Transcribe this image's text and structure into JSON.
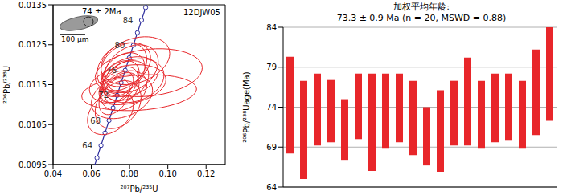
{
  "chart_data": [
    {
      "type": "scatter",
      "title": "12DJW05",
      "annotations": [
        "74 ± 2Ma",
        "100 μm"
      ],
      "x_label": "²⁰⁷Pb/²³⁵U",
      "y_label": "²⁰⁶Pb/²³⁸U",
      "xlim": [
        0.04,
        0.13
      ],
      "ylim": [
        0.0095,
        0.0135
      ],
      "xticks": [
        0.04,
        0.06,
        0.08,
        {
          "value": 0.1,
          "label": "0.10"
        },
        0.12
      ],
      "yticks": [
        0.0095,
        0.0105,
        0.0115,
        0.0125,
        0.0135
      ],
      "color": "#e8262a",
      "ellipses": {
        "x": [
          0.0745,
          0.078,
          0.076,
          0.08,
          0.072,
          0.077,
          0.085,
          0.079,
          0.074,
          0.081,
          0.07,
          0.076,
          0.083,
          0.075,
          0.078,
          0.073,
          0.09,
          0.077,
          0.082,
          0.076
        ],
        "y": [
          0.0115,
          0.0116,
          0.0114,
          0.0117,
          0.0112,
          0.0118,
          0.0113,
          0.0115,
          0.011,
          0.0119,
          0.0108,
          0.0112,
          0.0121,
          0.01165,
          0.012,
          0.01145,
          0.0118,
          0.01135,
          0.0116,
          0.01195
        ],
        "x_err": [
          0.01,
          0.012,
          0.009,
          0.015,
          0.008,
          0.011,
          0.03,
          0.02,
          0.012,
          0.014,
          0.012,
          0.016,
          0.018,
          0.01,
          0.013,
          0.009,
          0.028,
          0.012,
          0.016,
          0.013
        ],
        "y_err": [
          0.00045,
          0.0005,
          0.0004,
          0.0005,
          0.00045,
          0.0005,
          0.00045,
          0.0005,
          0.0006,
          0.0006,
          0.00055,
          0.00055,
          0.0006,
          0.00045,
          0.00055,
          0.0004,
          0.0006,
          0.0005,
          0.00055,
          0.0006
        ],
        "rho": [
          0.4,
          0.3,
          0.35,
          0.3,
          0.4,
          0.3,
          0.2,
          0.25,
          0.3,
          0.3,
          0.35,
          0.3,
          0.3,
          0.35,
          0.3,
          0.4,
          0.2,
          0.3,
          0.25,
          0.3
        ]
      },
      "concordia": {
        "color": "#2b2b9c",
        "marker": "circle",
        "x": [
          0.060872,
          0.062963,
          0.065058,
          0.067159,
          0.069262,
          0.071371,
          0.073482,
          0.0756,
          0.07772,
          0.079844,
          0.081974,
          0.084107,
          0.086243,
          0.088385,
          0.090531
        ],
        "y": [
          0.009351,
          0.009664,
          0.009977,
          0.010291,
          0.010605,
          0.010918,
          0.011232,
          0.011545,
          0.01186,
          0.012173,
          0.012487,
          0.012801,
          0.013116,
          0.01343,
          0.013745
        ],
        "labels": [
          null,
          null,
          64,
          null,
          68,
          null,
          72,
          null,
          76,
          null,
          80,
          null,
          84,
          null,
          null
        ]
      }
    },
    {
      "type": "bar",
      "title": "加权平均年龄:",
      "subtitle": "73.3 ± 0.9 Ma (n = 20, MSWD = 0.88)",
      "y_label": "²⁰⁶Pb/²³⁸Uage(Ma)",
      "values": [
        [
          68.2,
          80.3
        ],
        [
          65.0,
          77.3
        ],
        [
          69.2,
          78.2
        ],
        [
          69.6,
          77.4
        ],
        [
          67.3,
          75.0
        ],
        [
          70.0,
          78.2
        ],
        [
          66.0,
          78.2
        ],
        [
          68.8,
          78.2
        ],
        [
          69.6,
          78.2
        ],
        [
          68.0,
          77.3
        ],
        [
          66.7,
          74.0
        ],
        [
          65.9,
          76.1
        ],
        [
          69.2,
          77.3
        ],
        [
          69.2,
          80.2
        ],
        [
          68.8,
          77.3
        ],
        [
          69.6,
          78.2
        ],
        [
          69.8,
          78.2
        ],
        [
          68.8,
          77.3
        ],
        [
          70.5,
          81.2
        ],
        [
          72.3,
          84.0
        ]
      ],
      "color": "#e8262a",
      "ylim": [
        64,
        84
      ],
      "yticks": [
        64,
        69,
        74,
        79,
        84
      ],
      "grid": true,
      "tick_labels": "y"
    }
  ]
}
